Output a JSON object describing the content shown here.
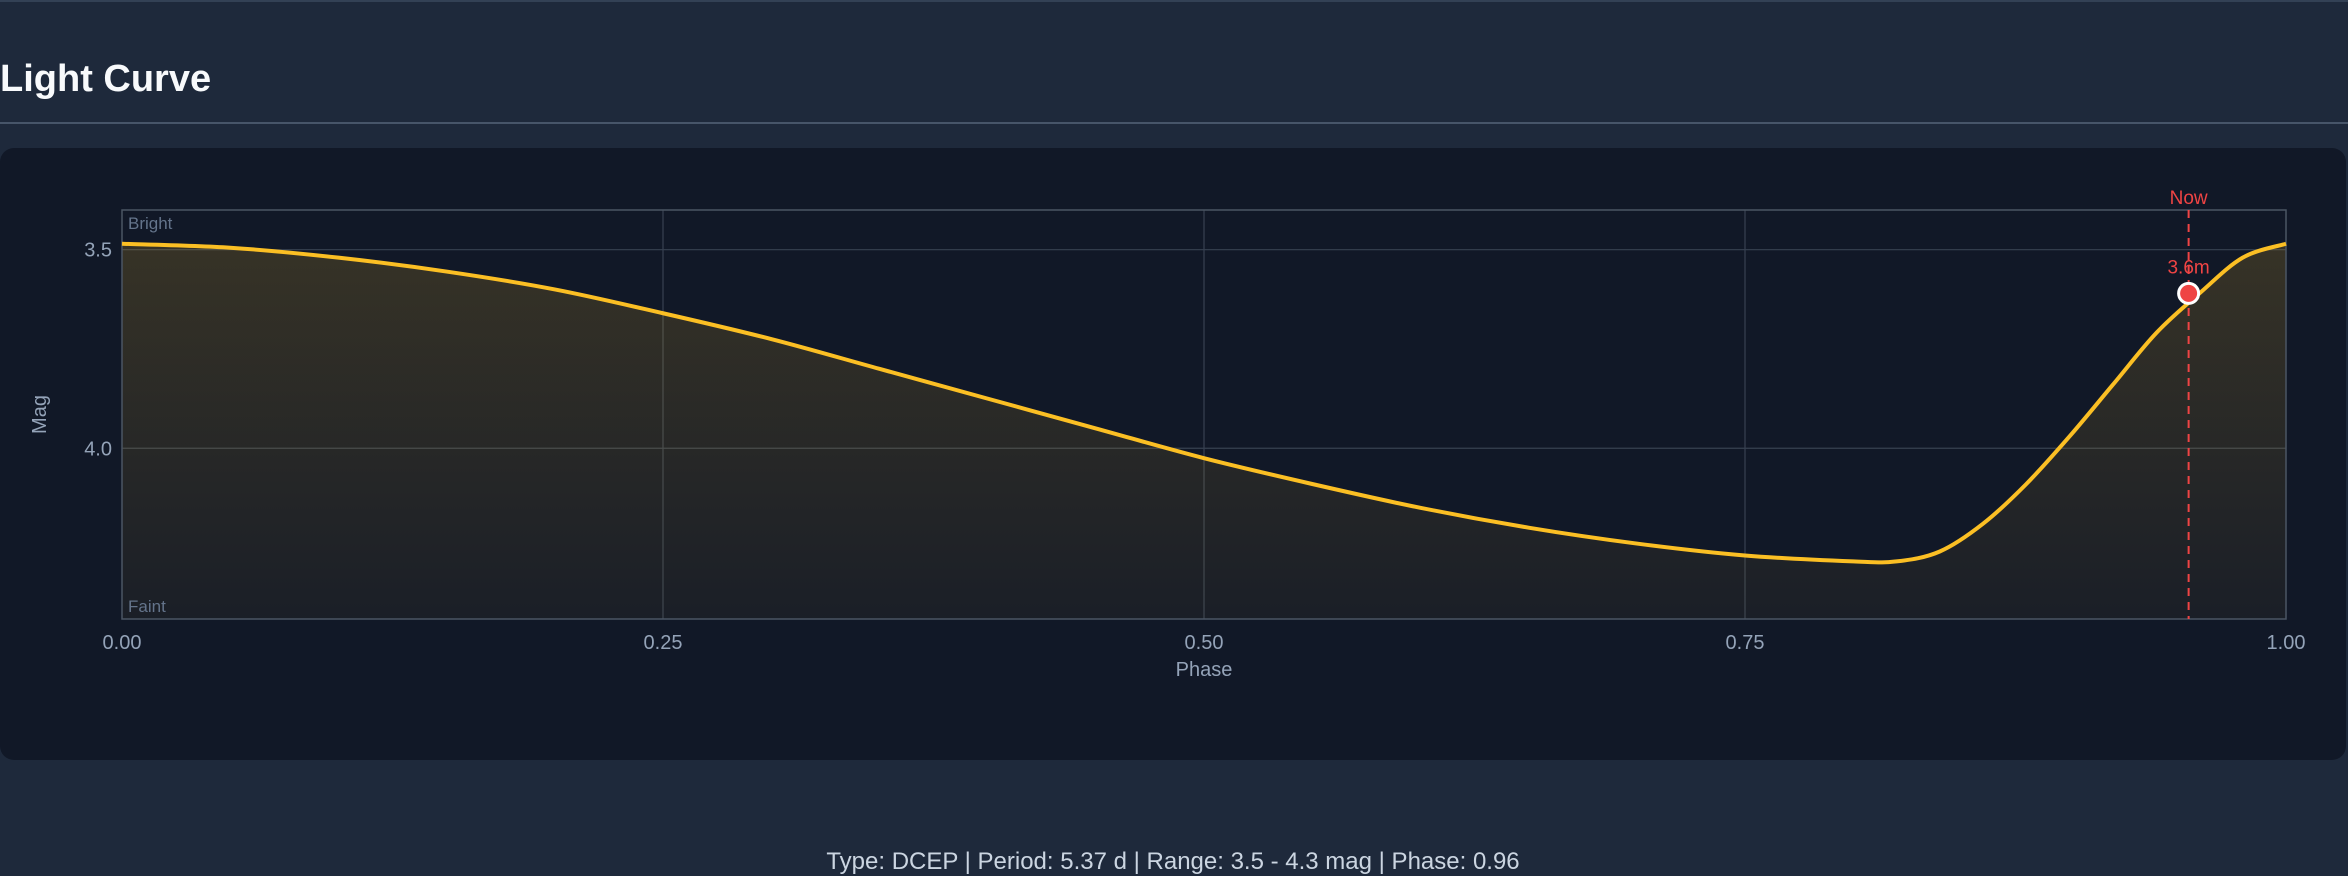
{
  "page": {
    "title": "Light Curve"
  },
  "info_line": "Type: DCEP | Period: 5.37 d | Range: 3.5 - 4.3 mag | Phase: 0.96",
  "colors": {
    "curve": "#fbbf24",
    "marker": "#ef4444",
    "grid": "#374151",
    "frame": "#4b5563"
  },
  "chart_data": {
    "type": "line",
    "xlabel": "Phase",
    "ylabel": "Mag",
    "xlim": [
      0,
      1
    ],
    "ylim": [
      3.4,
      4.43
    ],
    "y_inverted": true,
    "x_ticks": [
      "0.00",
      "0.25",
      "0.50",
      "0.75",
      "1.00"
    ],
    "x_tick_values": [
      0,
      0.25,
      0.5,
      0.75,
      1.0
    ],
    "y_ticks": [
      "3.5",
      "4.0"
    ],
    "y_tick_values": [
      3.5,
      4.0
    ],
    "corner_labels": {
      "top": "Bright",
      "bottom": "Faint"
    },
    "grid": true,
    "series": [
      {
        "x": [
          0,
          0.05,
          0.1,
          0.15,
          0.2,
          0.25,
          0.3,
          0.35,
          0.4,
          0.45,
          0.5,
          0.55,
          0.6,
          0.65,
          0.7,
          0.75,
          0.8,
          0.82,
          0.84,
          0.86,
          0.88,
          0.9,
          0.92,
          0.94,
          0.96,
          0.98,
          1.0
        ],
        "y": [
          3.485,
          3.495,
          3.52,
          3.555,
          3.6,
          3.66,
          3.725,
          3.8,
          3.875,
          3.95,
          4.025,
          4.09,
          4.15,
          4.2,
          4.24,
          4.27,
          4.285,
          4.285,
          4.26,
          4.19,
          4.09,
          3.97,
          3.84,
          3.71,
          3.61,
          3.52,
          3.485
        ]
      }
    ],
    "current": {
      "phase": 0.955,
      "mag": 3.61,
      "label": "3.6m",
      "line_label": "Now"
    }
  }
}
